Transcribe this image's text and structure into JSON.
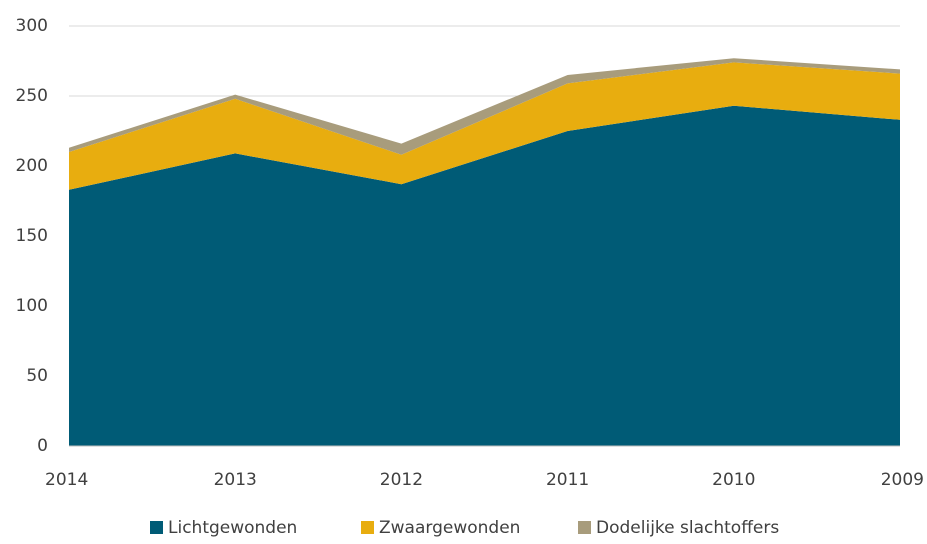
{
  "chart_data": {
    "type": "stacked_area",
    "categories": [
      "2014",
      "2013",
      "2012",
      "2011",
      "2010",
      "2009"
    ],
    "series": [
      {
        "name": "Lichtgewonden",
        "color": "#005b76",
        "values": [
          183,
          209,
          187,
          225,
          243,
          233
        ]
      },
      {
        "name": "Zwaargewonden",
        "color": "#e8ad0f",
        "values": [
          27,
          39,
          21,
          34,
          31,
          33
        ]
      },
      {
        "name": "Dodelijke slachtoffers",
        "color": "#a89c7c",
        "values": [
          3,
          3,
          8,
          6,
          3,
          3
        ]
      }
    ],
    "ylim": [
      0,
      300
    ],
    "yticks": [
      0,
      50,
      100,
      150,
      200,
      250,
      300
    ],
    "grid": true,
    "legend": "bottom"
  }
}
